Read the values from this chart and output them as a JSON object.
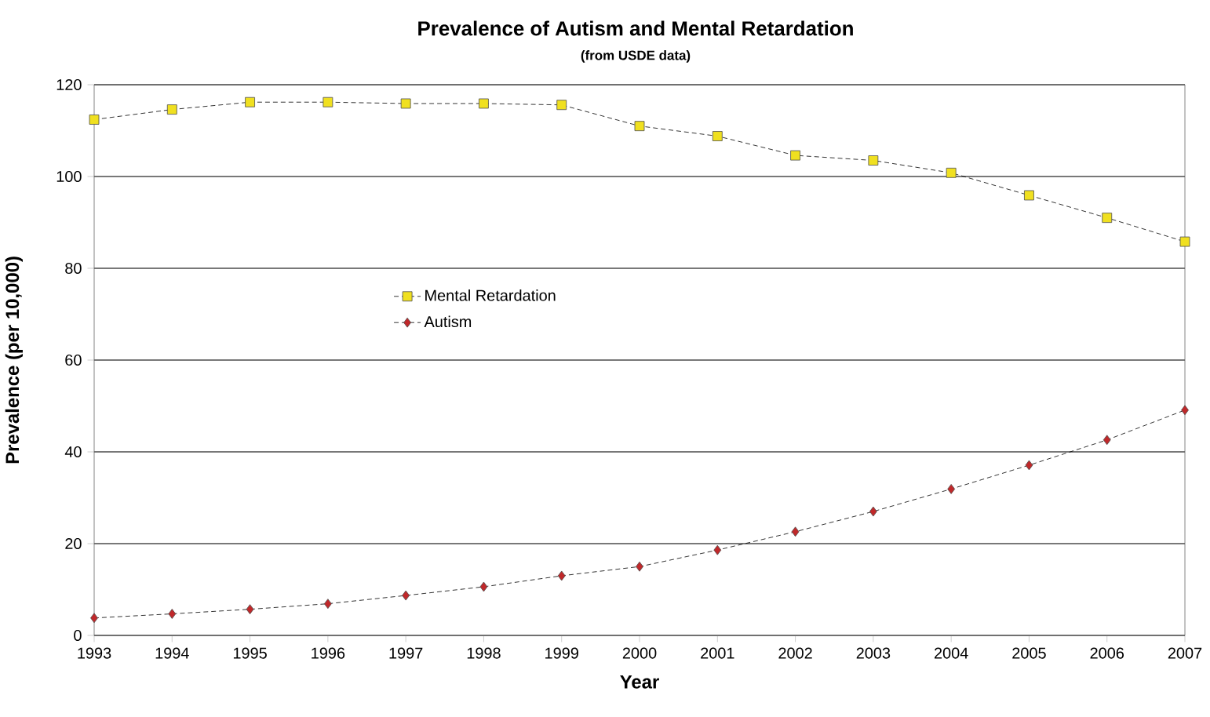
{
  "chart_data": {
    "type": "line",
    "title": "Prevalence of Autism and Mental Retardation",
    "subtitle": "(from USDE data)",
    "xlabel": "Year",
    "ylabel": "Prevalence (per 10,000)",
    "x": [
      1993,
      1994,
      1995,
      1996,
      1997,
      1998,
      1999,
      2000,
      2001,
      2002,
      2003,
      2004,
      2005,
      2006,
      2007
    ],
    "series": [
      {
        "name": "Mental Retardation",
        "color": "#f0e020",
        "marker": "square",
        "values": [
          112.4,
          114.6,
          116.2,
          116.2,
          115.9,
          115.9,
          115.6,
          111.0,
          108.8,
          104.6,
          103.5,
          100.8,
          95.9,
          91.0,
          85.8
        ]
      },
      {
        "name": "Autism",
        "color": "#c0282a",
        "marker": "diamond",
        "values": [
          3.8,
          4.7,
          5.7,
          6.9,
          8.7,
          10.6,
          13.0,
          15.0,
          18.6,
          22.6,
          27.0,
          31.9,
          37.1,
          42.6,
          49.1
        ]
      }
    ],
    "xlim": [
      1993,
      2007
    ],
    "xticks": [
      1993,
      1994,
      1995,
      1996,
      1997,
      1998,
      1999,
      2000,
      2001,
      2002,
      2003,
      2004,
      2005,
      2006,
      2007
    ],
    "ylim": [
      0,
      120
    ],
    "yticks": [
      0,
      20,
      40,
      60,
      80,
      100,
      120
    ],
    "grid": "y",
    "legend": "left",
    "line_style": "dashed"
  }
}
